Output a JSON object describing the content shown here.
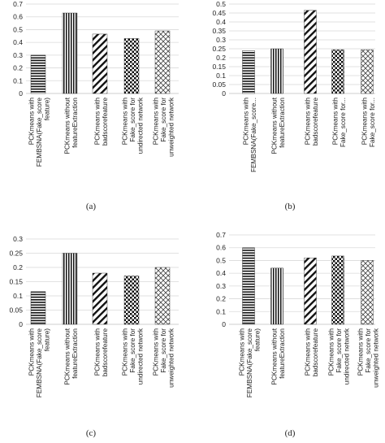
{
  "charts": [
    {
      "id": "a",
      "caption": "(a)",
      "chart_data": {
        "type": "bar",
        "categories": [
          "PCKmeans with FEMBSNA(Fake_score feature)",
          "PCKmeans without featureExtraction",
          "PCKmeans with badscorefeature",
          "PCKmeans with Fake_score for undirected network",
          "PCKmeans with Fake_score for unweighted network"
        ],
        "values": [
          0.3,
          0.63,
          0.465,
          0.43,
          0.49
        ],
        "patterns": [
          "hstripes",
          "vstripes",
          "diag",
          "checker",
          "crosshatch"
        ],
        "ylim": [
          0,
          0.7
        ],
        "yticks": [
          "0",
          "0.1",
          "0.2",
          "0.3",
          "0.4",
          "0.5",
          "0.6",
          "0.7"
        ],
        "title": "",
        "xlabel": "",
        "ylabel": "",
        "grid": true
      }
    },
    {
      "id": "b",
      "caption": "(b)",
      "chart_data": {
        "type": "bar",
        "categories": [
          "PCKmeans with FEMBSNA(Fake_score...",
          "PCKmeans without featureExtraction",
          "PCKmeans with badscorefeature",
          "PCKmeans with Fake_score for...",
          "PCKmeans with Fake_score for..."
        ],
        "values": [
          0.24,
          0.25,
          0.465,
          0.245,
          0.245
        ],
        "patterns": [
          "hstripes",
          "vstripes",
          "diag",
          "checker",
          "crosshatch"
        ],
        "ylim": [
          0,
          0.5
        ],
        "yticks": [
          "0",
          "0.05",
          "0.1",
          "0.15",
          "0.2",
          "0.25",
          "0.3",
          "0.35",
          "0.4",
          "0.45",
          "0.5"
        ],
        "title": "",
        "xlabel": "",
        "ylabel": "",
        "grid": true
      }
    },
    {
      "id": "c",
      "caption": "(c)",
      "chart_data": {
        "type": "bar",
        "categories": [
          "PCKmeans with FEMBSNA(Fake_score feature)",
          "PCKmeans without featureExtraction",
          "PCKmeans with badscorefeature",
          "PCKmeans with Fake_score for undirected network",
          "PCKmeans with Fake_score for unweighted network"
        ],
        "values": [
          0.115,
          0.25,
          0.18,
          0.17,
          0.2
        ],
        "patterns": [
          "hstripes",
          "vstripes",
          "diag",
          "checker",
          "crosshatch"
        ],
        "ylim": [
          0,
          0.3
        ],
        "yticks": [
          "0",
          "0.05",
          "0.1",
          "0.15",
          "0.2",
          "0.25",
          "0.3"
        ],
        "title": "",
        "xlabel": "",
        "ylabel": "",
        "grid": true
      }
    },
    {
      "id": "d",
      "caption": "(d)",
      "chart_data": {
        "type": "bar",
        "categories": [
          "PCKmeans with FEMBSNA(Fake_score feature)",
          "PCKmeans without featureExtraction",
          "PCKmeans with badscorefeature",
          "PCKmeans with Fake_score for undirected network",
          "PCKmeans with Fake_score for unweighted network"
        ],
        "values": [
          0.6,
          0.44,
          0.52,
          0.535,
          0.5
        ],
        "patterns": [
          "hstripes",
          "vstripes",
          "diag",
          "checker",
          "crosshatch"
        ],
        "ylim": [
          0,
          0.7
        ],
        "yticks": [
          "0",
          "0.1",
          "0.2",
          "0.3",
          "0.4",
          "0.5",
          "0.6",
          "0.7"
        ],
        "title": "",
        "xlabel": "",
        "ylabel": "",
        "grid": true
      }
    }
  ],
  "colors": {
    "bar_ink": "#111111",
    "grid": "#d9d9d9",
    "axis": "#bfbfbf"
  }
}
